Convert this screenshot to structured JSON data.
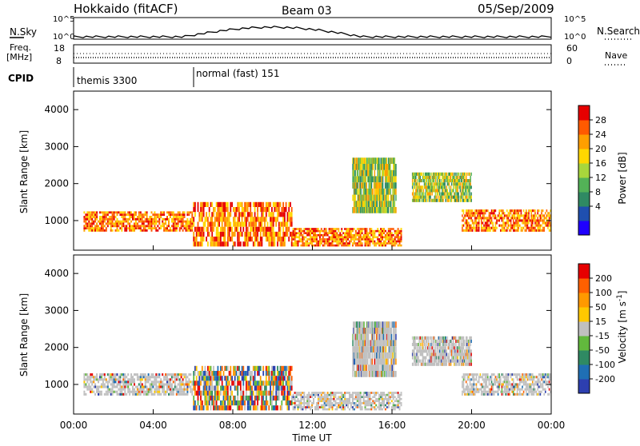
{
  "header": {
    "station": "Hokkaido (fitACF)",
    "beam": "Beam 03",
    "date": "05/Sep/2009"
  },
  "status_panel": {
    "nsky_label": "N.Sky",
    "nsearch_label": "N.Search",
    "noise_ticks_left": [
      "10^5",
      "10^0"
    ],
    "noise_ticks_right": [
      "10^5",
      "10^0"
    ],
    "freq_label_top": "Freq.",
    "freq_label_unit": "[MHz]",
    "freq_ticks": [
      "18",
      "8"
    ],
    "nave_label": "Nave",
    "nave_ticks": [
      "60",
      "0"
    ],
    "cpid_label": "CPID",
    "cpid_segments": [
      {
        "label": "themis 3300",
        "start_hour": 0
      },
      {
        "label": "normal (fast) 151",
        "start_hour": 6
      }
    ]
  },
  "chart_data": [
    {
      "type": "heatmap",
      "panel": "power",
      "ylabel": "Slant Range [km]",
      "xlim_hours": [
        0,
        24
      ],
      "ylim_km": [
        200,
        4500
      ],
      "y_ticks": [
        1000,
        2000,
        3000,
        4000
      ],
      "colorbar": {
        "label": "Power [dB]",
        "ticks": [
          "28",
          "24",
          "20",
          "16",
          "12",
          "8",
          "4"
        ],
        "colors": [
          "#1f00ff",
          "#1f4faf",
          "#2f8a63",
          "#53b257",
          "#a8d63c",
          "#ffd700",
          "#ff9f00",
          "#ff5a00",
          "#e60000"
        ]
      },
      "features": [
        {
          "start_hour": 0.5,
          "end_hour": 6.0,
          "range_km": [
            700,
            1250
          ],
          "level": "high"
        },
        {
          "start_hour": 6.0,
          "end_hour": 11.0,
          "range_km": [
            300,
            1500
          ],
          "level": "high"
        },
        {
          "start_hour": 11.0,
          "end_hour": 16.5,
          "range_km": [
            300,
            800
          ],
          "level": "high"
        },
        {
          "start_hour": 14.0,
          "end_hour": 16.2,
          "range_km": [
            1200,
            2700
          ],
          "level": "medium"
        },
        {
          "start_hour": 17.0,
          "end_hour": 20.0,
          "range_km": [
            1500,
            2300
          ],
          "level": "medium"
        },
        {
          "start_hour": 19.5,
          "end_hour": 24.0,
          "range_km": [
            700,
            1300
          ],
          "level": "high"
        }
      ]
    },
    {
      "type": "heatmap",
      "panel": "velocity",
      "ylabel": "Slant Range [km]",
      "xlabel": "Time UT",
      "xlim_hours": [
        0,
        24
      ],
      "ylim_km": [
        200,
        4500
      ],
      "y_ticks": [
        1000,
        2000,
        3000,
        4000
      ],
      "x_ticks": [
        "00:00",
        "04:00",
        "08:00",
        "12:00",
        "16:00",
        "20:00",
        "00:00"
      ],
      "colorbar": {
        "label": "Velocity [m s^-1]",
        "ticks": [
          "200",
          "100",
          "50",
          "15",
          "-15",
          "-50",
          "-100",
          "-200"
        ],
        "colors": [
          "#2d3fb0",
          "#1f6fb4",
          "#2f8a63",
          "#62b93d",
          "#c0c0c0",
          "#ffc800",
          "#ff9900",
          "#ff6000",
          "#e60000"
        ]
      },
      "features": [
        {
          "start_hour": 0.5,
          "end_hour": 6.0,
          "range_km": [
            700,
            1300
          ],
          "level": "ground"
        },
        {
          "start_hour": 6.0,
          "end_hour": 11.0,
          "range_km": [
            300,
            1500
          ],
          "level": "mixed"
        },
        {
          "start_hour": 11.0,
          "end_hour": 16.5,
          "range_km": [
            300,
            800
          ],
          "level": "ground"
        },
        {
          "start_hour": 14.0,
          "end_hour": 16.2,
          "range_km": [
            1200,
            2700
          ],
          "level": "ground"
        },
        {
          "start_hour": 17.0,
          "end_hour": 20.0,
          "range_km": [
            1500,
            2300
          ],
          "level": "ground"
        },
        {
          "start_hour": 19.5,
          "end_hour": 24.0,
          "range_km": [
            700,
            1300
          ],
          "level": "ground"
        }
      ]
    }
  ]
}
